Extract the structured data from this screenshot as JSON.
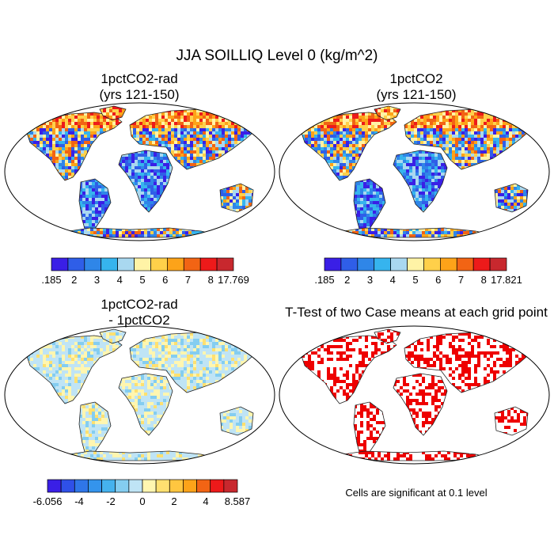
{
  "title": "JJA SOILLIQ Level 0 (kg/m^2)",
  "panels": [
    {
      "title_line1": "1pctCO2-rad",
      "title_line2": "(yrs 121-150)"
    },
    {
      "title_line1": "1pctCO2",
      "title_line2": "(yrs 121-150)"
    },
    {
      "title_line1": "1pctCO2-rad",
      "title_line2": "- 1pctCO2"
    },
    {
      "title_line1": "T-Test of two Case means at each grid point",
      "title_line2": ""
    }
  ],
  "colorbars": [
    {
      "labels": [
        ".185",
        "2",
        "3",
        "4",
        "5",
        "6",
        "7",
        "8",
        "17.769"
      ],
      "colors": [
        "#3a1fe6",
        "#2f5ee8",
        "#2f86e8",
        "#36b4ee",
        "#a9d8f0",
        "#fff3a6",
        "#ffd04a",
        "#fda319",
        "#f26414",
        "#ed1a1a",
        "#c8282e"
      ]
    },
    {
      "labels": [
        ".185",
        "2",
        "3",
        "4",
        "5",
        "6",
        "7",
        "8",
        "17.821"
      ],
      "colors": [
        "#3a1fe6",
        "#2f5ee8",
        "#2f86e8",
        "#36b4ee",
        "#a9d8f0",
        "#fff3a6",
        "#ffd04a",
        "#fda319",
        "#f26414",
        "#ed1a1a",
        "#c8282e"
      ]
    },
    {
      "labels": [
        "-6.056",
        "-4",
        "-2",
        "0",
        "2",
        "4",
        "8.587"
      ],
      "colors": [
        "#3a1fe6",
        "#2f50e8",
        "#2f76e8",
        "#3494ec",
        "#45b2ee",
        "#84cdf0",
        "#bfe4f5",
        "#fff6b0",
        "#ffe070",
        "#ffc640",
        "#fda319",
        "#f26414",
        "#ed1a1a",
        "#c8282e"
      ]
    }
  ],
  "note": "Cells are significant at 0.1 level"
}
